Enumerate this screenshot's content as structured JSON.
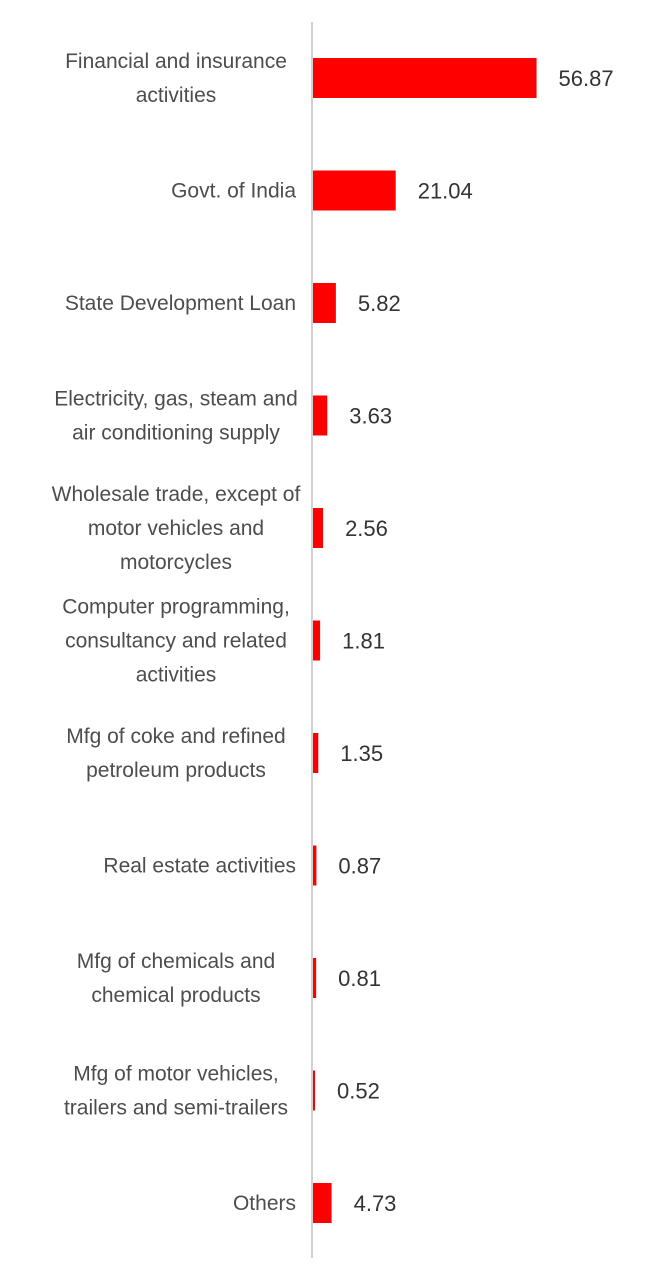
{
  "chart_data": {
    "type": "bar",
    "orientation": "horizontal",
    "title": "",
    "xlabel": "",
    "ylabel": "",
    "categories": [
      [
        "Financial and insurance",
        "activities"
      ],
      [
        "Govt. of India"
      ],
      [
        "State Development Loan"
      ],
      [
        "Electricity, gas, steam and",
        "air conditioning supply"
      ],
      [
        "Wholesale trade, except of",
        "motor vehicles and",
        "motorcycles"
      ],
      [
        "Computer programming,",
        "consultancy and related",
        "activities"
      ],
      [
        "Mfg of coke and refined",
        "petroleum products"
      ],
      [
        "Real estate activities"
      ],
      [
        "Mfg of chemicals and",
        "chemical products"
      ],
      [
        "Mfg of motor vehicles,",
        "trailers and semi-trailers"
      ],
      [
        "Others"
      ]
    ],
    "values": [
      56.87,
      21.04,
      5.82,
      3.63,
      2.56,
      1.81,
      1.35,
      0.87,
      0.81,
      0.52,
      4.73
    ],
    "value_labels": [
      "56.87",
      "21.04",
      "5.82",
      "3.63",
      "2.56",
      "1.81",
      "1.35",
      "0.87",
      "0.81",
      "0.52",
      "4.73"
    ],
    "xlim": [
      0,
      58
    ],
    "grid": false,
    "legend": "none",
    "bar_color": "#ff0000",
    "axis_color": "#d0d0d0"
  }
}
